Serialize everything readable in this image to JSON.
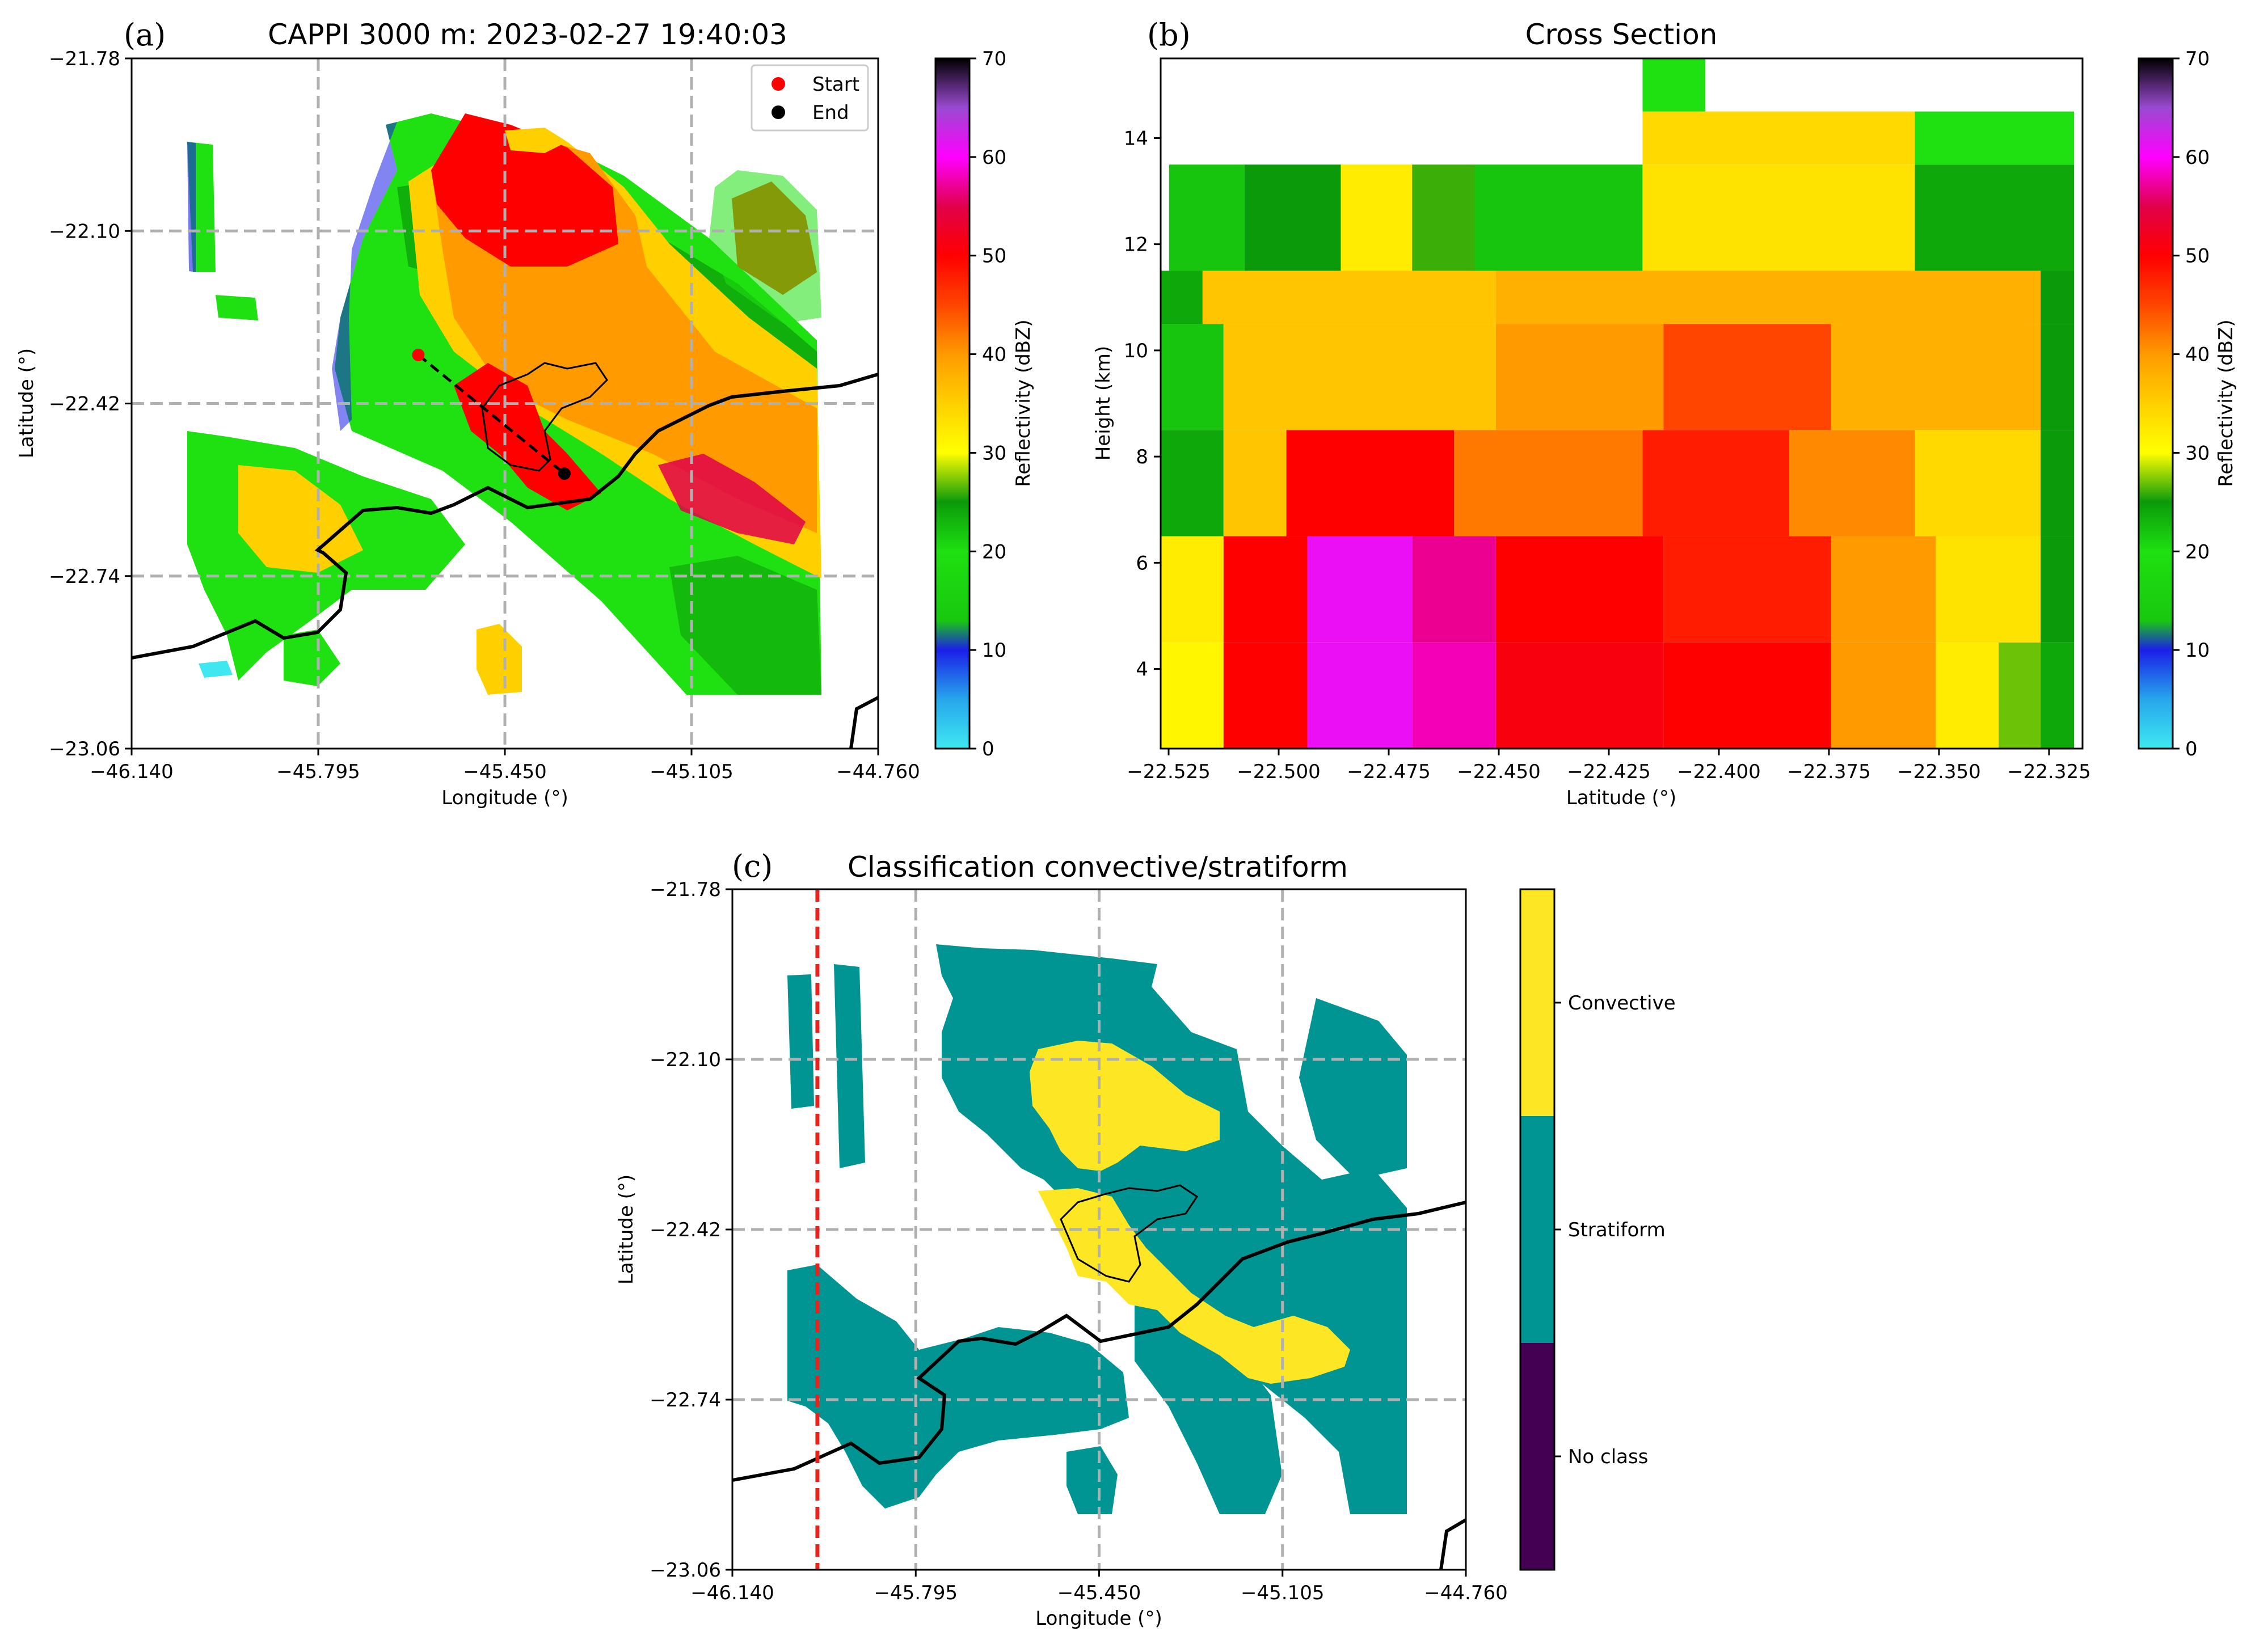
{
  "colors": {
    "reflectivity_cmap": [
      {
        "dbz": 0,
        "color": "#3fe8f0"
      },
      {
        "dbz": 5,
        "color": "#27a6ec"
      },
      {
        "dbz": 10,
        "color": "#1b1fe8"
      },
      {
        "dbz": 13,
        "color": "#18c80e"
      },
      {
        "dbz": 20,
        "color": "#1fe011"
      },
      {
        "dbz": 25,
        "color": "#0a9a0a"
      },
      {
        "dbz": 30,
        "color": "#ffff00"
      },
      {
        "dbz": 35,
        "color": "#ffd000"
      },
      {
        "dbz": 40,
        "color": "#ff9a00"
      },
      {
        "dbz": 45,
        "color": "#ff4500"
      },
      {
        "dbz": 50,
        "color": "#ff0000"
      },
      {
        "dbz": 55,
        "color": "#e0004a"
      },
      {
        "dbz": 60,
        "color": "#ff00ff"
      },
      {
        "dbz": 65,
        "color": "#9a4ad0"
      },
      {
        "dbz": 70,
        "color": "#000000"
      }
    ],
    "convective": "#fde725",
    "stratiform": "#009592",
    "no_class": "#440154",
    "grid": "#b0b0b0",
    "start_marker": "#ff0000",
    "end_marker": "#000000",
    "divider_line": "#e8221c"
  },
  "panel_a": {
    "label": "(a)",
    "chart_data": {
      "type": "heatmap",
      "title": "CAPPI 3000 m: 2023-02-27 19:40:03",
      "xlabel": "Longitude (°)",
      "ylabel": "Latitude (°)",
      "xlim": [
        -46.14,
        -44.76
      ],
      "ylim": [
        -23.06,
        -21.78
      ],
      "xticks": [
        "−46.140",
        "−45.795",
        "−45.450",
        "−45.105",
        "−44.760"
      ],
      "yticks": [
        "−21.78",
        "−22.10",
        "−22.42",
        "−22.74",
        "−23.06"
      ],
      "grid": true,
      "legend": {
        "placement": "top-right",
        "entries": [
          {
            "label": "Start",
            "color": "#ff0000"
          },
          {
            "label": "End",
            "color": "#000000"
          }
        ]
      },
      "cross_section_line": {
        "start": [
          -45.61,
          -22.33
        ],
        "end": [
          -45.34,
          -22.55
        ]
      },
      "colorbar": {
        "label": "Reflectivity (dBZ)",
        "ticks": [
          "0",
          "10",
          "20",
          "30",
          "40",
          "50",
          "60",
          "70"
        ],
        "range": [
          0,
          70
        ]
      },
      "echo_cells": [
        {
          "lon": -45.46,
          "lat": -22.22,
          "rx": 0.28,
          "ry": 0.3,
          "dbz": 28
        },
        {
          "lon": -45.5,
          "lat": -22.1,
          "rx": 0.16,
          "ry": 0.14,
          "dbz": 46
        },
        {
          "lon": -45.44,
          "lat": -22.46,
          "rx": 0.1,
          "ry": 0.08,
          "dbz": 50
        },
        {
          "lon": -45.2,
          "lat": -22.6,
          "rx": 0.22,
          "ry": 0.12,
          "dbz": 42
        },
        {
          "lon": -45.0,
          "lat": -22.12,
          "rx": 0.09,
          "ry": 0.1,
          "dbz": 44
        },
        {
          "lon": -45.05,
          "lat": -22.55,
          "rx": 0.12,
          "ry": 0.2,
          "dbz": 22
        },
        {
          "lon": -45.85,
          "lat": -22.65,
          "rx": 0.18,
          "ry": 0.12,
          "dbz": 20
        },
        {
          "lon": -45.95,
          "lat": -22.15,
          "rx": 0.03,
          "ry": 0.1,
          "dbz": 12
        }
      ]
    }
  },
  "panel_b": {
    "label": "(b)",
    "chart_data": {
      "type": "heatmap",
      "title": "Cross Section",
      "xlabel": "Latitude (°)",
      "ylabel": "Height (km)",
      "xlim": [
        -22.54,
        -22.32
      ],
      "ylim": [
        2.5,
        15.5
      ],
      "xticks": [
        "−22.525",
        "−22.500",
        "−22.475",
        "−22.450",
        "−22.425",
        "−22.400",
        "−22.375",
        "−22.350",
        "−22.325"
      ],
      "yticks": [
        "4",
        "6",
        "8",
        "10",
        "12",
        "14"
      ],
      "grid": false,
      "colorbar": {
        "label": "Reflectivity (dBZ)",
        "ticks": [
          "0",
          "10",
          "20",
          "30",
          "40",
          "50",
          "60",
          "70"
        ],
        "range": [
          0,
          70
        ]
      },
      "layers": [
        {
          "h": [
            2.5,
            4.5
          ],
          "segments": [
            [
              -22.54,
              -22.525,
              31
            ],
            [
              -22.525,
              -22.505,
              50
            ],
            [
              -22.505,
              -22.48,
              61
            ],
            [
              -22.48,
              -22.46,
              58
            ],
            [
              -22.46,
              -22.42,
              51
            ],
            [
              -22.42,
              -22.38,
              50
            ],
            [
              -22.38,
              -22.355,
              40
            ],
            [
              -22.355,
              -22.34,
              32
            ],
            [
              -22.34,
              -22.33,
              27
            ],
            [
              -22.33,
              -22.322,
              24
            ]
          ]
        },
        {
          "h": [
            4.5,
            6.5
          ],
          "segments": [
            [
              -22.54,
              -22.525,
              32
            ],
            [
              -22.525,
              -22.505,
              50
            ],
            [
              -22.505,
              -22.48,
              61
            ],
            [
              -22.48,
              -22.46,
              57
            ],
            [
              -22.46,
              -22.42,
              50
            ],
            [
              -22.42,
              -22.38,
              48
            ],
            [
              -22.38,
              -22.355,
              40
            ],
            [
              -22.355,
              -22.33,
              33
            ],
            [
              -22.33,
              -22.322,
              25
            ]
          ]
        },
        {
          "h": [
            6.5,
            8.5
          ],
          "segments": [
            [
              -22.54,
              -22.525,
              24
            ],
            [
              -22.525,
              -22.51,
              36
            ],
            [
              -22.51,
              -22.47,
              50
            ],
            [
              -22.47,
              -22.425,
              42
            ],
            [
              -22.425,
              -22.39,
              48
            ],
            [
              -22.39,
              -22.36,
              41
            ],
            [
              -22.36,
              -22.33,
              34
            ],
            [
              -22.33,
              -22.322,
              25
            ]
          ]
        },
        {
          "h": [
            8.5,
            10.5
          ],
          "segments": [
            [
              -22.54,
              -22.525,
              22
            ],
            [
              -22.525,
              -22.46,
              36
            ],
            [
              -22.46,
              -22.42,
              40
            ],
            [
              -22.42,
              -22.38,
              45
            ],
            [
              -22.38,
              -22.33,
              38
            ],
            [
              -22.33,
              -22.322,
              25
            ]
          ]
        },
        {
          "h": [
            10.5,
            11.5
          ],
          "segments": [
            [
              -22.54,
              -22.53,
              24
            ],
            [
              -22.53,
              -22.46,
              36
            ],
            [
              -22.46,
              -22.33,
              38
            ],
            [
              -22.33,
              -22.322,
              25
            ]
          ]
        },
        {
          "h": [
            11.5,
            13.5
          ],
          "segments": [
            [
              -22.538,
              -22.52,
              22
            ],
            [
              -22.52,
              -22.497,
              25
            ],
            [
              -22.497,
              -22.48,
              32
            ],
            [
              -22.48,
              -22.465,
              26
            ],
            [
              -22.465,
              -22.425,
              22
            ],
            [
              -22.425,
              -22.36,
              33
            ],
            [
              -22.36,
              -22.322,
              24
            ]
          ]
        },
        {
          "h": [
            13.5,
            14.5
          ],
          "segments": [
            [
              -22.425,
              -22.36,
              34
            ],
            [
              -22.36,
              -22.322,
              20
            ]
          ]
        },
        {
          "h": [
            14.5,
            15.5
          ],
          "segments": [
            [
              -22.425,
              -22.41,
              20
            ]
          ]
        }
      ]
    }
  },
  "panel_c": {
    "label": "(c)",
    "chart_data": {
      "type": "heatmap",
      "title": "Classification convective/stratiform",
      "xlabel": "Longitude (°)",
      "ylabel": "Latitude (°)",
      "xlim": [
        -46.14,
        -44.76
      ],
      "ylim": [
        -23.06,
        -21.78
      ],
      "xticks": [
        "−46.140",
        "−45.795",
        "−45.450",
        "−45.105",
        "−44.760"
      ],
      "yticks": [
        "−21.78",
        "−22.10",
        "−22.42",
        "−22.74",
        "−23.06"
      ],
      "grid": true,
      "vertical_marker_lon": -45.98,
      "colorbar": {
        "categories": [
          "No class",
          "Stratiform",
          "Convective"
        ]
      }
    }
  }
}
